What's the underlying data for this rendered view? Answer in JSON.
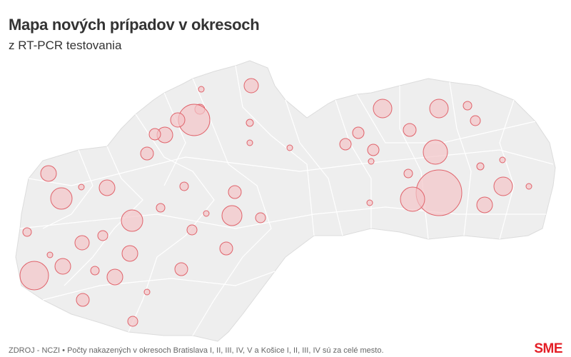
{
  "header": {
    "title": "Mapa nových prípadov v okresoch",
    "subtitle": "z RT-PCR testovania"
  },
  "map": {
    "region": "Slovakia districts",
    "fill_color": "#eeeeee",
    "border_color": "#ffffff",
    "bubble_fill": "#f3c5c8",
    "bubble_stroke": "#e0636b"
  },
  "footer": {
    "source": "ZDROJ - NCZI • Počty nakazených v okresoch Bratislava I, II, III, IV, V a Košice I, II, III, IV sú za celé mesto.",
    "logo": "SME"
  }
}
